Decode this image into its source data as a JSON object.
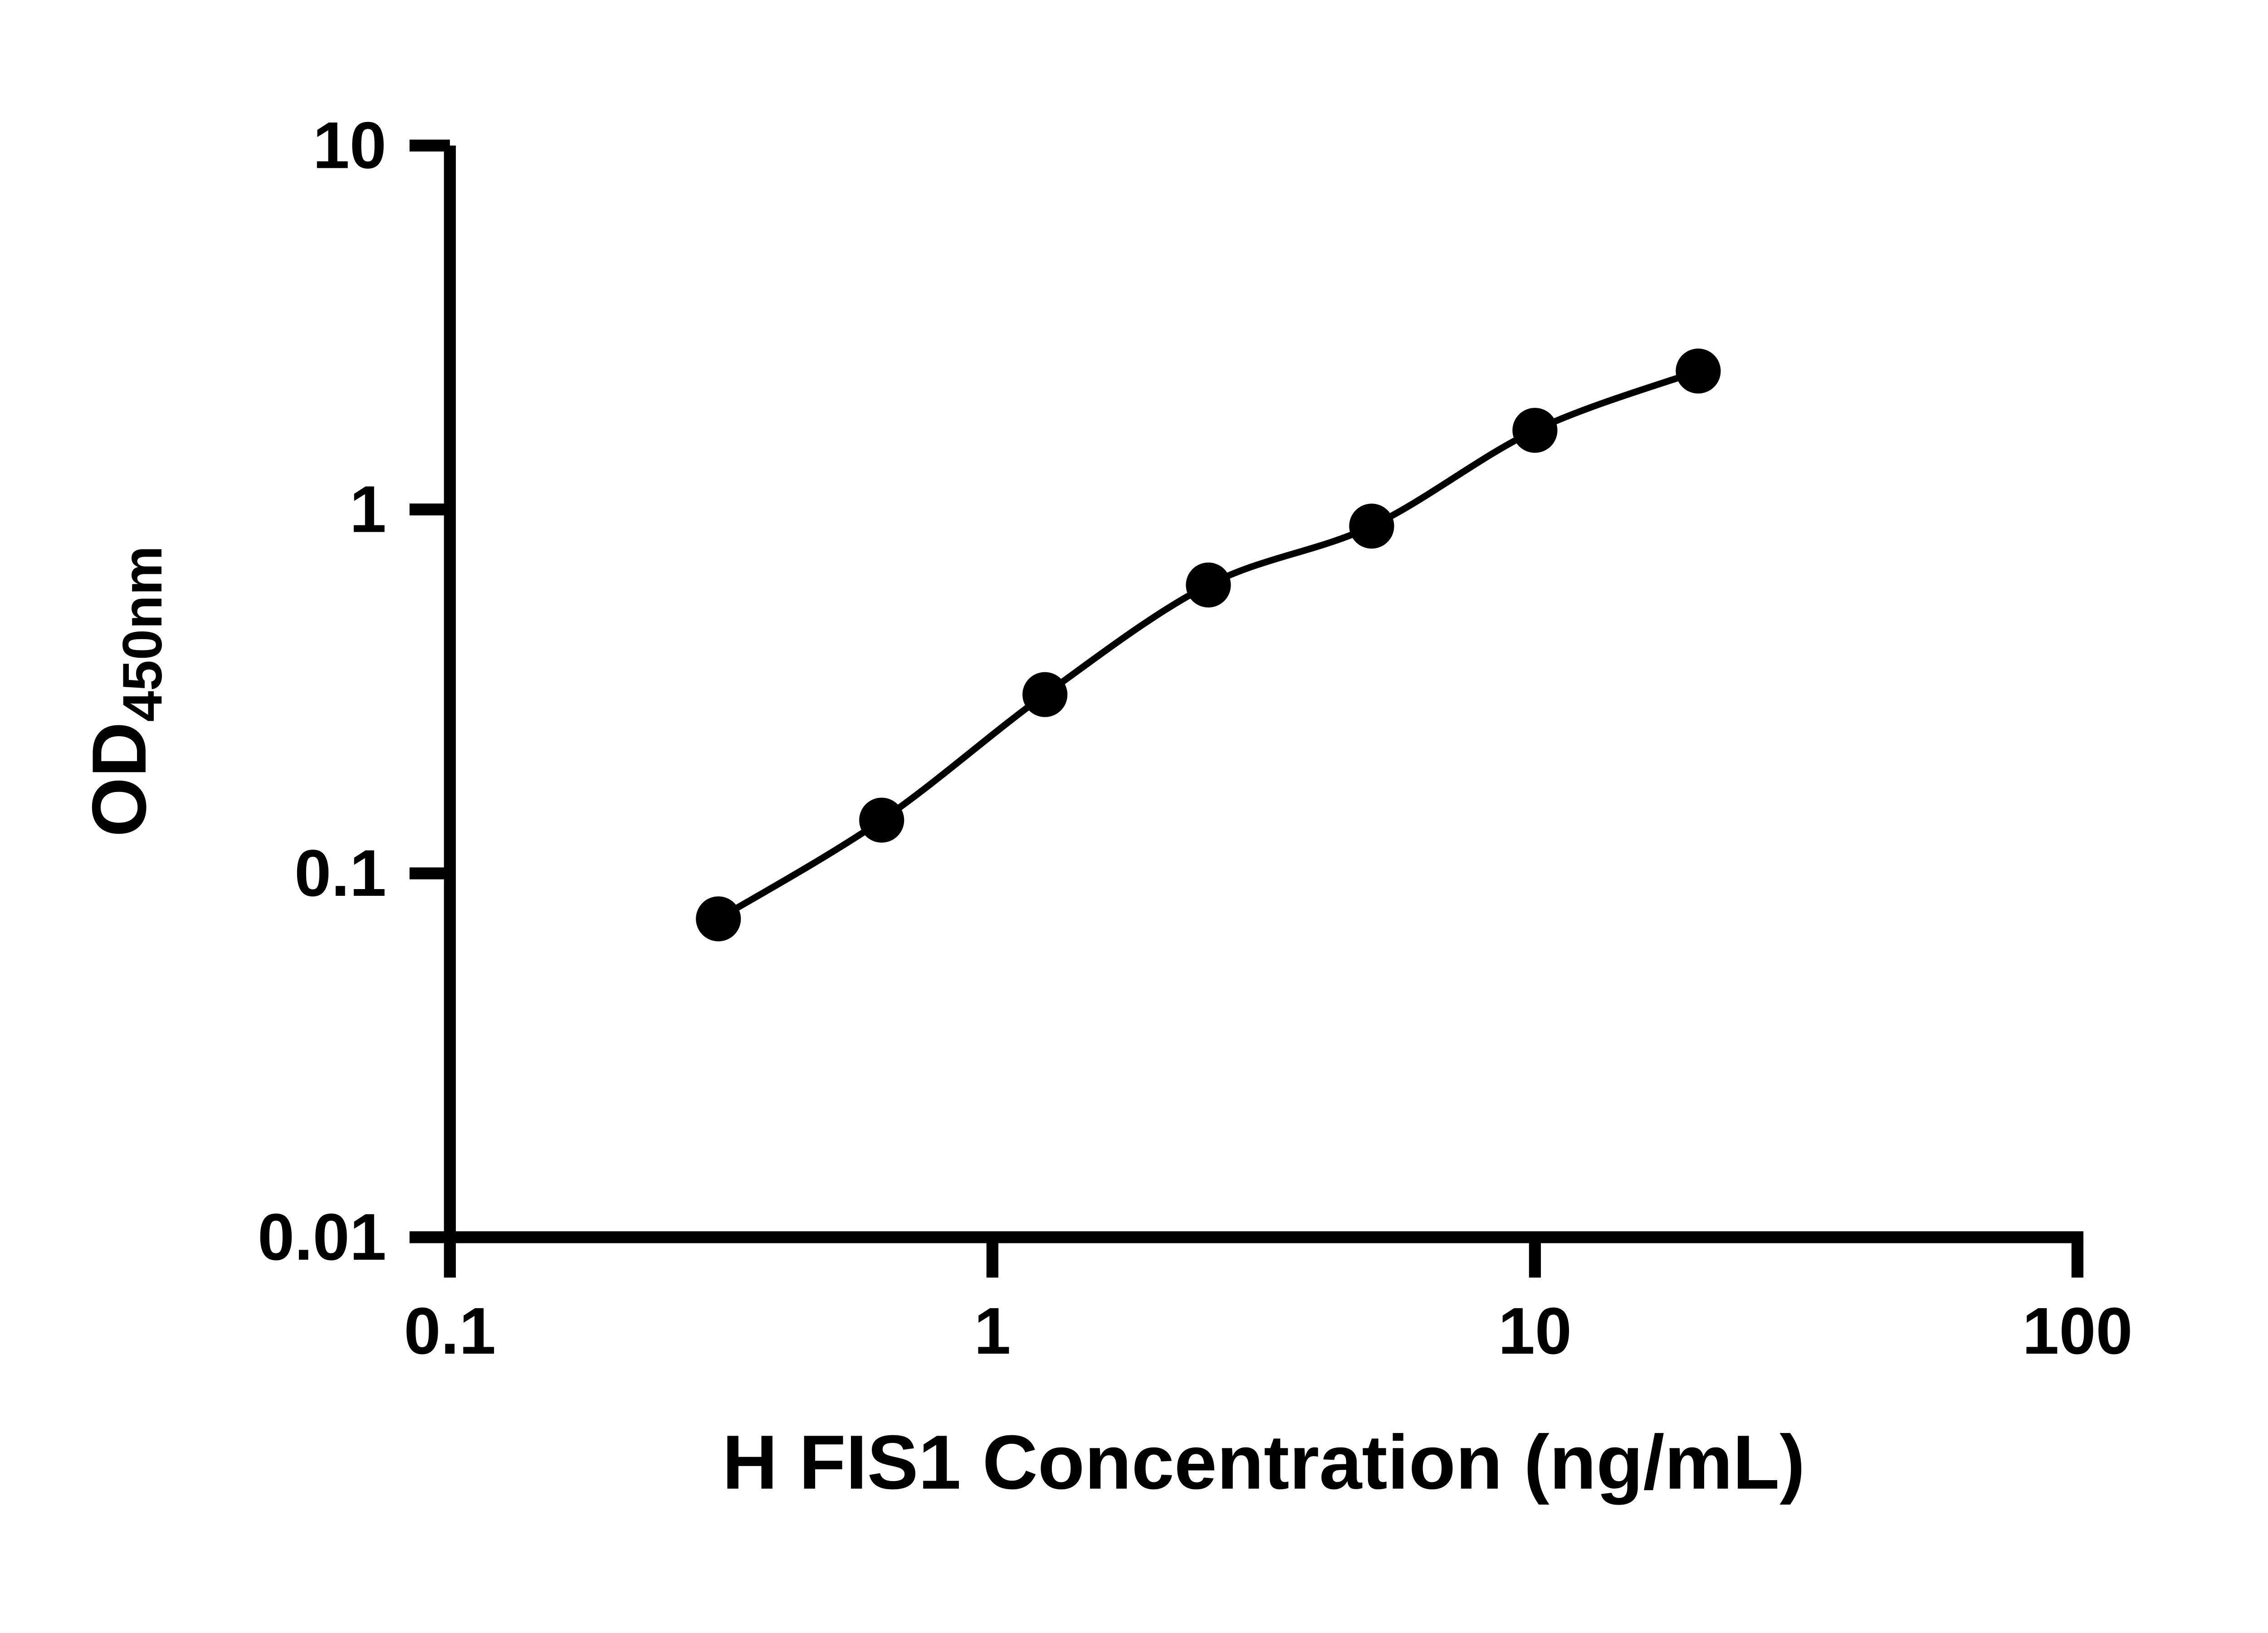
{
  "chart_data": {
    "type": "scatter",
    "title": "",
    "xlabel": "H FIS1 Concentration (ng/mL)",
    "ylabel_main": "OD",
    "ylabel_sub": "450nm",
    "x_scale": "log",
    "y_scale": "log",
    "xlim": [
      0.1,
      100
    ],
    "ylim": [
      0.01,
      10
    ],
    "x_ticks": [
      {
        "value": 0.1,
        "label": "0.1"
      },
      {
        "value": 1,
        "label": "1"
      },
      {
        "value": 10,
        "label": "10"
      },
      {
        "value": 100,
        "label": "100"
      }
    ],
    "y_ticks": [
      {
        "value": 0.01,
        "label": "0.01"
      },
      {
        "value": 0.1,
        "label": "0.1"
      },
      {
        "value": 1,
        "label": "1"
      },
      {
        "value": 10,
        "label": "10"
      }
    ],
    "points": [
      {
        "x": 0.3125,
        "y": 0.075
      },
      {
        "x": 0.625,
        "y": 0.14
      },
      {
        "x": 1.25,
        "y": 0.31
      },
      {
        "x": 2.5,
        "y": 0.62
      },
      {
        "x": 5,
        "y": 0.9
      },
      {
        "x": 10,
        "y": 1.65
      },
      {
        "x": 20,
        "y": 2.4
      }
    ],
    "curve": "smooth fit through points (4PL-style standard curve)",
    "marker_color": "#000000",
    "line_color": "#000000",
    "background_color": "#ffffff",
    "grid": false,
    "legend": "none"
  }
}
